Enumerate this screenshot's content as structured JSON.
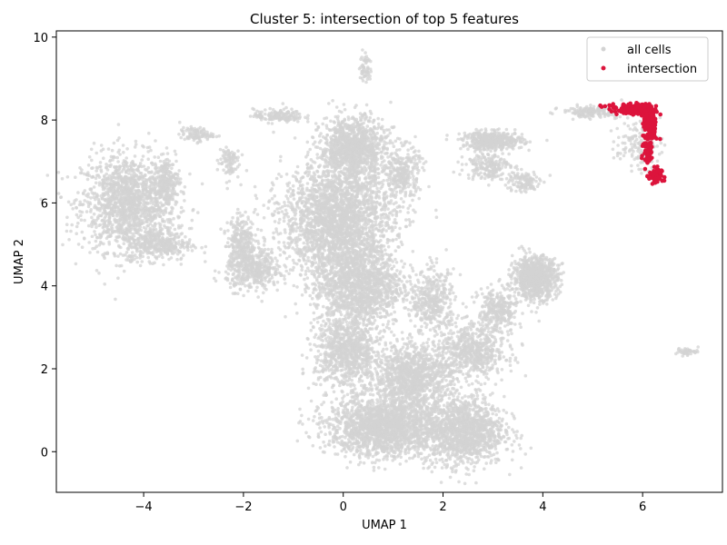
{
  "chart_data": {
    "type": "scatter",
    "title": "Cluster 5: intersection of top 5 features",
    "xlabel": "UMAP 1",
    "ylabel": "UMAP 2",
    "xlim": [
      -5.75,
      7.6
    ],
    "ylim": [
      -0.98,
      10.15
    ],
    "xticks": [
      -4,
      -2,
      0,
      2,
      4,
      6
    ],
    "yticks": [
      0,
      2,
      4,
      6,
      8,
      10
    ],
    "x_tick_labels": [
      "−4",
      "−2",
      "0",
      "2",
      "4",
      "6"
    ],
    "y_tick_labels": [
      "0",
      "2",
      "4",
      "6",
      "8",
      "10"
    ],
    "grid": false,
    "legend_position": "top-right",
    "series": [
      {
        "name": "all cells",
        "color": "#d3d3d3",
        "regions": [
          {
            "cx": -4.3,
            "cy": 6.0,
            "rx": 0.85,
            "ry": 1.05,
            "n": 1500
          },
          {
            "cx": -3.7,
            "cy": 5.0,
            "rx": 0.6,
            "ry": 0.35,
            "n": 350
          },
          {
            "cx": -3.55,
            "cy": 6.5,
            "rx": 0.2,
            "ry": 0.5,
            "n": 200
          },
          {
            "cx": -2.95,
            "cy": 7.65,
            "rx": 0.3,
            "ry": 0.15,
            "n": 100
          },
          {
            "cx": -2.3,
            "cy": 7.0,
            "rx": 0.2,
            "ry": 0.4,
            "n": 90
          },
          {
            "cx": -1.3,
            "cy": 8.1,
            "rx": 0.45,
            "ry": 0.15,
            "n": 150
          },
          {
            "cx": -2.05,
            "cy": 5.1,
            "rx": 0.25,
            "ry": 0.55,
            "n": 250
          },
          {
            "cx": -1.8,
            "cy": 4.4,
            "rx": 0.5,
            "ry": 0.45,
            "n": 450
          },
          {
            "cx": 0.2,
            "cy": 7.3,
            "rx": 0.6,
            "ry": 0.7,
            "n": 1100
          },
          {
            "cx": -0.1,
            "cy": 5.6,
            "rx": 1.0,
            "ry": 1.2,
            "n": 2400
          },
          {
            "cx": 0.3,
            "cy": 4.0,
            "rx": 0.8,
            "ry": 0.9,
            "n": 1400
          },
          {
            "cx": 0.1,
            "cy": 2.4,
            "rx": 0.6,
            "ry": 0.8,
            "n": 900
          },
          {
            "cx": 1.4,
            "cy": 1.8,
            "rx": 0.7,
            "ry": 0.7,
            "n": 1100
          },
          {
            "cx": 0.8,
            "cy": 0.6,
            "rx": 1.0,
            "ry": 0.65,
            "n": 1800
          },
          {
            "cx": 2.4,
            "cy": 0.5,
            "rx": 0.75,
            "ry": 0.75,
            "n": 1300
          },
          {
            "cx": 2.6,
            "cy": 2.4,
            "rx": 0.6,
            "ry": 0.6,
            "n": 600
          },
          {
            "cx": 3.1,
            "cy": 3.4,
            "rx": 0.35,
            "ry": 0.5,
            "n": 300
          },
          {
            "cx": 3.85,
            "cy": 4.2,
            "rx": 0.4,
            "ry": 0.45,
            "n": 900
          },
          {
            "cx": 1.8,
            "cy": 3.6,
            "rx": 0.4,
            "ry": 0.7,
            "n": 400
          },
          {
            "cx": 3.0,
            "cy": 7.5,
            "rx": 0.55,
            "ry": 0.2,
            "n": 450
          },
          {
            "cx": 2.9,
            "cy": 6.9,
            "rx": 0.4,
            "ry": 0.3,
            "n": 200
          },
          {
            "cx": 3.6,
            "cy": 6.5,
            "rx": 0.3,
            "ry": 0.25,
            "n": 120
          },
          {
            "cx": 1.2,
            "cy": 6.7,
            "rx": 0.3,
            "ry": 0.6,
            "n": 300
          },
          {
            "cx": 5.0,
            "cy": 8.2,
            "rx": 0.55,
            "ry": 0.12,
            "n": 180
          },
          {
            "cx": 5.9,
            "cy": 7.4,
            "rx": 0.4,
            "ry": 0.55,
            "n": 150
          },
          {
            "cx": 0.45,
            "cy": 9.25,
            "rx": 0.1,
            "ry": 0.35,
            "n": 60
          },
          {
            "cx": 6.9,
            "cy": 2.42,
            "rx": 0.2,
            "ry": 0.08,
            "n": 45
          }
        ]
      },
      {
        "name": "intersection",
        "color": "#dc143c",
        "points_summary": {
          "x_range": [
            5.0,
            6.4
          ],
          "y_range": [
            6.4,
            8.5
          ]
        },
        "regions": [
          {
            "cx": 5.9,
            "cy": 8.25,
            "rx": 0.35,
            "ry": 0.12,
            "n": 200
          },
          {
            "cx": 6.15,
            "cy": 7.8,
            "rx": 0.12,
            "ry": 0.35,
            "n": 120
          },
          {
            "cx": 6.1,
            "cy": 7.2,
            "rx": 0.1,
            "ry": 0.35,
            "n": 45
          },
          {
            "cx": 6.25,
            "cy": 6.65,
            "rx": 0.12,
            "ry": 0.2,
            "n": 60
          },
          {
            "cx": 5.3,
            "cy": 8.35,
            "rx": 0.15,
            "ry": 0.03,
            "n": 6
          }
        ]
      }
    ]
  }
}
